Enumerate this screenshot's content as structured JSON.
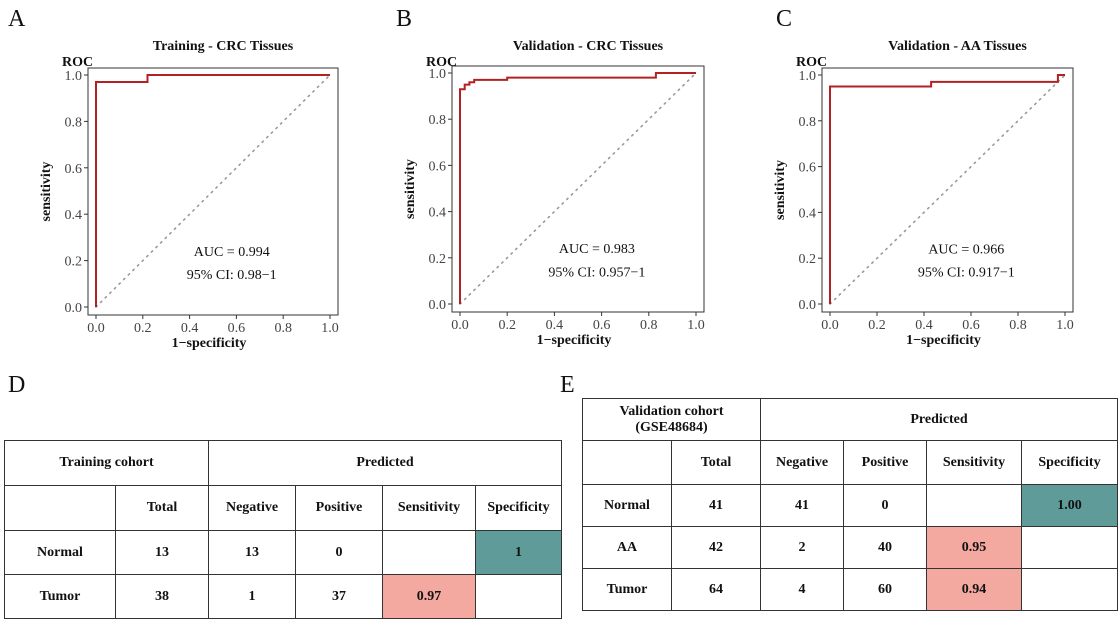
{
  "panels": [
    {
      "label": "A"
    },
    {
      "label": "B"
    },
    {
      "label": "C"
    },
    {
      "label": "D"
    },
    {
      "label": "E"
    }
  ],
  "chart_data": [
    {
      "panel": "A",
      "type": "line",
      "title": "Training - CRC Tissues",
      "roc_label": "ROC",
      "xlabel": "1−specificity",
      "ylabel": "sensitivity",
      "xlim": [
        0,
        1
      ],
      "ylim": [
        0,
        1
      ],
      "xticks": [
        "0.0",
        "0.2",
        "0.4",
        "0.6",
        "0.8",
        "1.0"
      ],
      "yticks": [
        "0.0",
        "0.2",
        "0.4",
        "0.6",
        "0.8",
        "1.0"
      ],
      "grid": false,
      "series": [
        {
          "color": "#b22222",
          "x": [
            0,
            0,
            0.22,
            0.22,
            1
          ],
          "y": [
            0,
            0.97,
            0.97,
            1,
            1
          ]
        }
      ],
      "reference_line": {
        "x": [
          0,
          1
        ],
        "y": [
          0,
          1
        ],
        "style": "dotted"
      },
      "auc_text": "AUC = 0.994",
      "ci_text": "95% CI: 0.98−1"
    },
    {
      "panel": "B",
      "type": "line",
      "title": "Validation - CRC Tissues",
      "roc_label": "ROC",
      "xlabel": "1−specificity",
      "ylabel": "sensitivity",
      "xlim": [
        0,
        1
      ],
      "ylim": [
        0,
        1
      ],
      "xticks": [
        "0.0",
        "0.2",
        "0.4",
        "0.6",
        "0.8",
        "1.0"
      ],
      "yticks": [
        "0.0",
        "0.2",
        "0.4",
        "0.6",
        "0.8",
        "1.0"
      ],
      "grid": false,
      "series": [
        {
          "color": "#b22222",
          "x": [
            0,
            0,
            0.02,
            0.02,
            0.04,
            0.04,
            0.06,
            0.06,
            0.2,
            0.2,
            0.83,
            0.83,
            1
          ],
          "y": [
            0,
            0.93,
            0.93,
            0.95,
            0.95,
            0.96,
            0.96,
            0.97,
            0.97,
            0.98,
            0.98,
            1,
            1
          ]
        }
      ],
      "reference_line": {
        "x": [
          0,
          1
        ],
        "y": [
          0,
          1
        ],
        "style": "dotted"
      },
      "auc_text": "AUC = 0.983",
      "ci_text": "95% CI: 0.957−1"
    },
    {
      "panel": "C",
      "type": "line",
      "title": "Validation - AA Tissues",
      "roc_label": "ROC",
      "xlabel": "1−specificity",
      "ylabel": "sensitivity",
      "xlim": [
        0,
        1
      ],
      "ylim": [
        0,
        1
      ],
      "xticks": [
        "0.0",
        "0.2",
        "0.4",
        "0.6",
        "0.8",
        "1.0"
      ],
      "yticks": [
        "0.0",
        "0.2",
        "0.4",
        "0.6",
        "0.8",
        "1.0"
      ],
      "grid": false,
      "series": [
        {
          "color": "#b22222",
          "x": [
            0,
            0,
            0.43,
            0.43,
            0.97,
            0.97,
            1
          ],
          "y": [
            0,
            0.95,
            0.95,
            0.97,
            0.97,
            1,
            1
          ]
        }
      ],
      "reference_line": {
        "x": [
          0,
          1
        ],
        "y": [
          0,
          1
        ],
        "style": "dotted"
      },
      "auc_text": "AUC = 0.966",
      "ci_text": "95% CI: 0.917−1"
    },
    {
      "panel": "D",
      "type": "table",
      "cohort": "Training cohort",
      "predicted": "Predicted",
      "headers": [
        "Total",
        "Negative",
        "Positive",
        "Sensitivity",
        "Specificity"
      ],
      "rows": [
        {
          "label": "Normal",
          "total": "13",
          "negative": "13",
          "positive": "0",
          "sensitivity": "",
          "specificity": "1"
        },
        {
          "label": "Tumor",
          "total": "38",
          "negative": "1",
          "positive": "37",
          "sensitivity": "0.97",
          "specificity": ""
        }
      ]
    },
    {
      "panel": "E",
      "type": "table",
      "cohort": "Validation cohort (GSE48684)",
      "predicted": "Predicted",
      "headers": [
        "Total",
        "Negative",
        "Positive",
        "Sensitivity",
        "Specificity"
      ],
      "rows": [
        {
          "label": "Normal",
          "total": "41",
          "negative": "41",
          "positive": "0",
          "sensitivity": "",
          "specificity": "1.00"
        },
        {
          "label": "AA",
          "total": "42",
          "negative": "2",
          "positive": "40",
          "sensitivity": "0.95",
          "specificity": ""
        },
        {
          "label": "Tumor",
          "total": "64",
          "negative": "4",
          "positive": "60",
          "sensitivity": "0.94",
          "specificity": ""
        }
      ]
    }
  ]
}
